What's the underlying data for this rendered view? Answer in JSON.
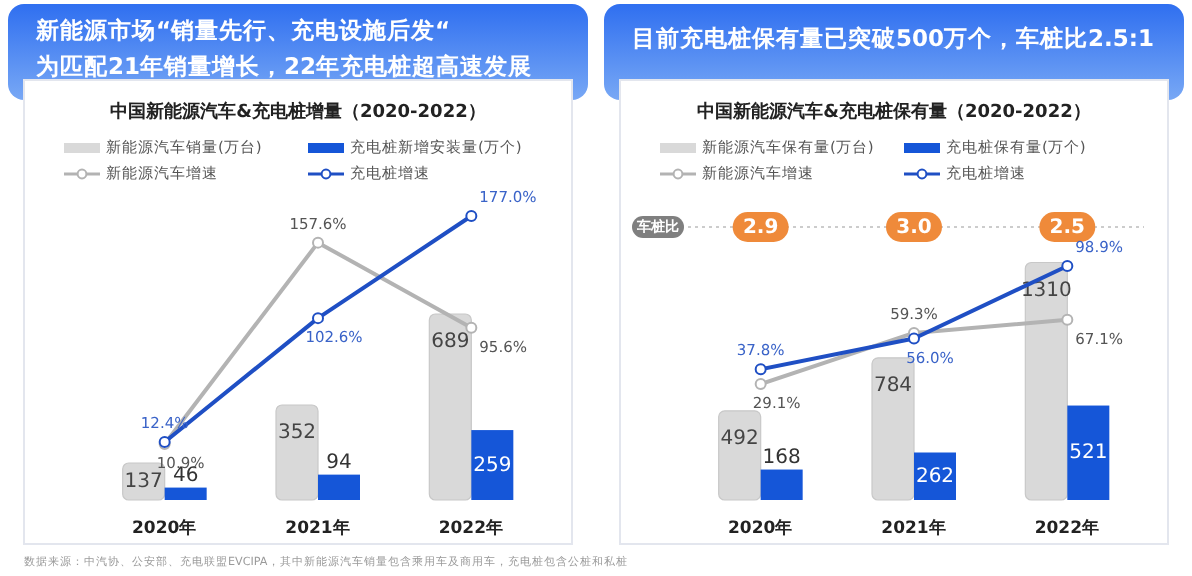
{
  "chart_data": [
    {
      "type": "bar",
      "title": "新能源市场“销量先行、充电设施后发“\n为匹配21年销量增长，22年充电桩超高速发展",
      "subtitle": "中国新能源汽车&充电桩增量（2020-2022）",
      "categories": [
        "2020年",
        "2021年",
        "2022年"
      ],
      "legend": "top",
      "data_labels": true,
      "marker": "circle",
      "series": [
        {
          "name": "新能源汽车销量(万台)",
          "color": "#d9d9d9",
          "values": [
            137,
            352,
            689
          ]
        },
        {
          "name": "充电桩新增安装量(万个)",
          "color": "#1556d8",
          "values": [
            46,
            94,
            259
          ]
        },
        {
          "name": "新能源汽车增速",
          "type": "line",
          "axis": "y2",
          "color": "#b3b3b3",
          "values": [
            10.9,
            157.6,
            95.6
          ],
          "value_labels": [
            "10.9%",
            "157.6%",
            "95.6%"
          ]
        },
        {
          "name": "充电桩增速",
          "type": "line",
          "axis": "y2",
          "color": "#1f4fc4",
          "values": [
            12.4,
            102.6,
            177.0
          ],
          "value_labels": [
            "12.4%",
            "102.6%",
            "177.0%"
          ]
        }
      ],
      "annotations": [
        "数据来源：中汽协、公安部、充电联盟EVCIPA，其中新能源汽车销量包含乘用车及商用车，充电桩包含公桩和私桩"
      ]
    },
    {
      "type": "bar",
      "title": "目前充电桩保有量已突破500万个，车桩比2.5:1",
      "subtitle": "中国新能源汽车&充电桩保有量（2020-2022）",
      "categories": [
        "2020年",
        "2021年",
        "2022年"
      ],
      "legend": "top",
      "data_labels": true,
      "marker": "circle",
      "series": [
        {
          "name": "新能源汽车保有量(万台)",
          "color": "#d9d9d9",
          "values": [
            492,
            784,
            1310
          ]
        },
        {
          "name": "充电桩保有量(万个)",
          "color": "#1556d8",
          "values": [
            168,
            262,
            521
          ]
        },
        {
          "name": "新能源汽车增速",
          "type": "line",
          "axis": "y2",
          "color": "#b3b3b3",
          "values": [
            29.1,
            59.3,
            67.1
          ],
          "value_labels": [
            "29.1%",
            "59.3%",
            "67.1%"
          ]
        },
        {
          "name": "充电桩增速",
          "type": "line",
          "axis": "y2",
          "color": "#1f4fc4",
          "values": [
            37.8,
            56.0,
            98.9
          ],
          "value_labels": [
            "37.8%",
            "56.0%",
            "98.9%"
          ]
        }
      ],
      "annotations": [
        "车桩比",
        "2.9",
        "3.0",
        "2.5"
      ]
    }
  ]
}
